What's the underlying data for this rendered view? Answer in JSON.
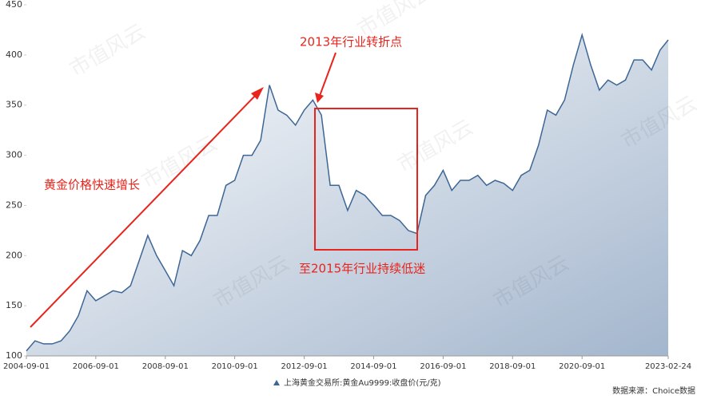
{
  "chart_data": {
    "type": "area",
    "series": [
      {
        "name": "上海黄金交易所:黄金Au9999:收盘价(元/克)",
        "color": "#3d6695",
        "values": [
          105,
          115,
          112,
          112,
          115,
          125,
          140,
          165,
          155,
          160,
          165,
          163,
          170,
          195,
          220,
          200,
          185,
          170,
          205,
          200,
          215,
          240,
          240,
          270,
          275,
          300,
          300,
          315,
          370,
          345,
          340,
          330,
          345,
          355,
          340,
          270,
          270,
          245,
          265,
          260,
          250,
          240,
          240,
          235,
          225,
          222,
          260,
          270,
          285,
          265,
          275,
          275,
          280,
          270,
          275,
          272,
          265,
          280,
          285,
          310,
          345,
          340,
          355,
          390,
          420,
          390,
          365,
          375,
          370,
          375,
          395,
          395,
          385,
          405,
          415
        ]
      }
    ],
    "x": [
      "2004-09-01",
      "2004-12-01",
      "2005-03-01",
      "2005-06-01",
      "2005-09-01",
      "2005-12-01",
      "2006-03-01",
      "2006-06-01",
      "2006-09-01",
      "2006-12-01",
      "2007-03-01",
      "2007-06-01",
      "2007-09-01",
      "2007-12-01",
      "2008-03-01",
      "2008-06-01",
      "2008-09-01",
      "2008-12-01",
      "2009-03-01",
      "2009-06-01",
      "2009-09-01",
      "2009-12-01",
      "2010-03-01",
      "2010-06-01",
      "2010-09-01",
      "2010-12-01",
      "2011-03-01",
      "2011-06-01",
      "2011-09-01",
      "2011-12-01",
      "2012-03-01",
      "2012-06-01",
      "2012-09-01",
      "2012-12-01",
      "2013-03-01",
      "2013-06-01",
      "2013-09-01",
      "2013-12-01",
      "2014-03-01",
      "2014-06-01",
      "2014-09-01",
      "2014-12-01",
      "2015-03-01",
      "2015-06-01",
      "2015-09-01",
      "2015-12-01",
      "2016-03-01",
      "2016-06-01",
      "2016-09-01",
      "2016-12-01",
      "2017-03-01",
      "2017-06-01",
      "2017-09-01",
      "2017-12-01",
      "2018-03-01",
      "2018-06-01",
      "2018-09-01",
      "2018-12-01",
      "2019-03-01",
      "2019-06-01",
      "2019-09-01",
      "2019-12-01",
      "2020-03-01",
      "2020-06-01",
      "2020-09-01",
      "2020-12-01",
      "2021-03-01",
      "2021-06-01",
      "2021-09-01",
      "2021-12-01",
      "2022-03-01",
      "2022-06-01",
      "2022-09-01",
      "2022-12-01",
      "2023-02-24"
    ],
    "xlim": [
      "2004-09-01",
      "2023-02-24"
    ],
    "xticks": [
      "2004-09-01",
      "2006-09-01",
      "2008-09-01",
      "2010-09-01",
      "2012-09-01",
      "2014-09-01",
      "2016-09-01",
      "2018-09-01",
      "2020-09-01",
      "2023-02-24"
    ],
    "ylim": [
      100,
      450
    ],
    "yticks": [
      100,
      150,
      200,
      250,
      300,
      350,
      400,
      450
    ],
    "annotations": [
      "黄金价格快速增长",
      "2013年行业转折点",
      "至2015年行业持续低迷"
    ],
    "source": "数据来源：Choice数据",
    "watermark": "市值风云"
  }
}
